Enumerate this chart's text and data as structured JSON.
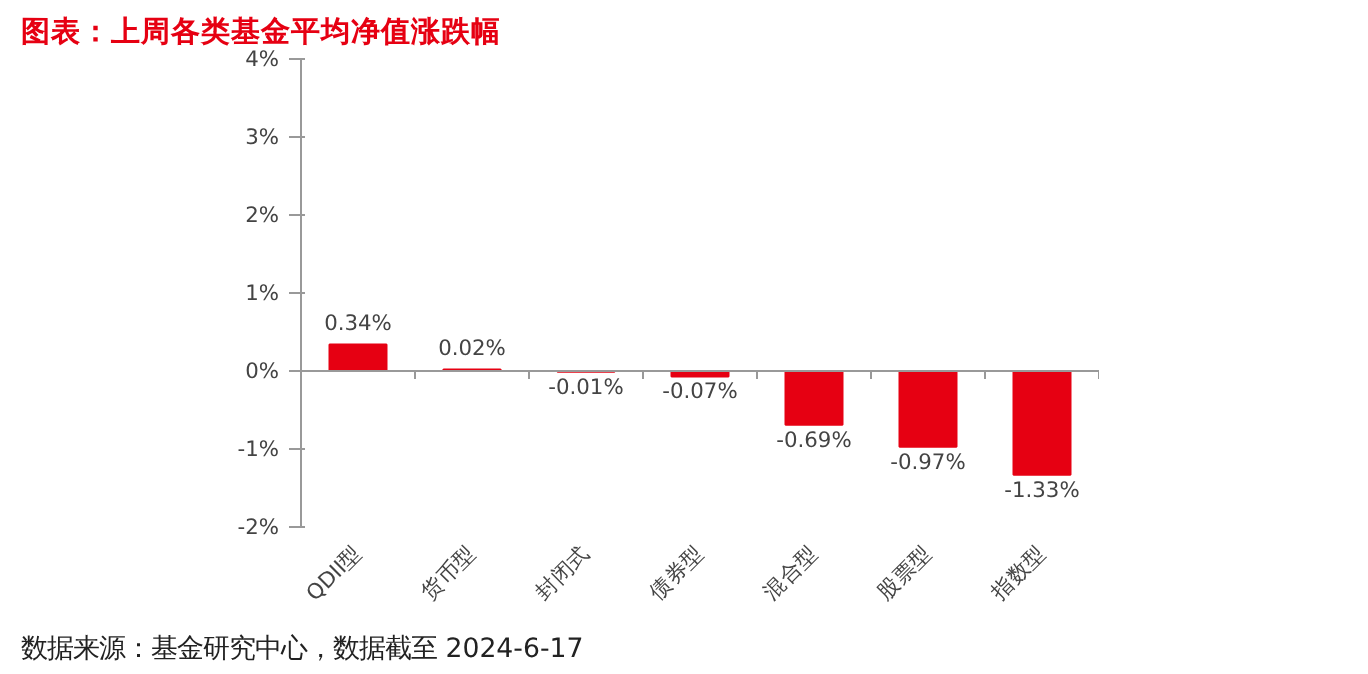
{
  "chart_data": {
    "type": "bar",
    "title": "图表：上周各类基金平均净值涨跌幅",
    "categories": [
      "QDII型",
      "货币型",
      "封闭式",
      "债券型",
      "混合型",
      "股票型",
      "指数型"
    ],
    "values": [
      0.34,
      0.02,
      -0.01,
      -0.07,
      -0.69,
      -0.97,
      -1.33
    ],
    "value_labels": [
      "0.34%",
      "0.02%",
      "-0.01%",
      "-0.07%",
      "-0.69%",
      "-0.97%",
      "-1.33%"
    ],
    "color": "#e60012",
    "ylim": [
      -2,
      4
    ],
    "yticks": [
      {
        "value": -2,
        "label": "-2%"
      },
      {
        "value": -1,
        "label": "-1%"
      },
      {
        "value": 0,
        "label": "0%"
      },
      {
        "value": 1,
        "label": "1%"
      },
      {
        "value": 2,
        "label": "2%"
      },
      {
        "value": 3,
        "label": "3%"
      },
      {
        "value": 4,
        "label": "4%"
      }
    ],
    "annotations": [
      "数据来源：基金研究中心，数据截至 2024-6-17"
    ]
  }
}
